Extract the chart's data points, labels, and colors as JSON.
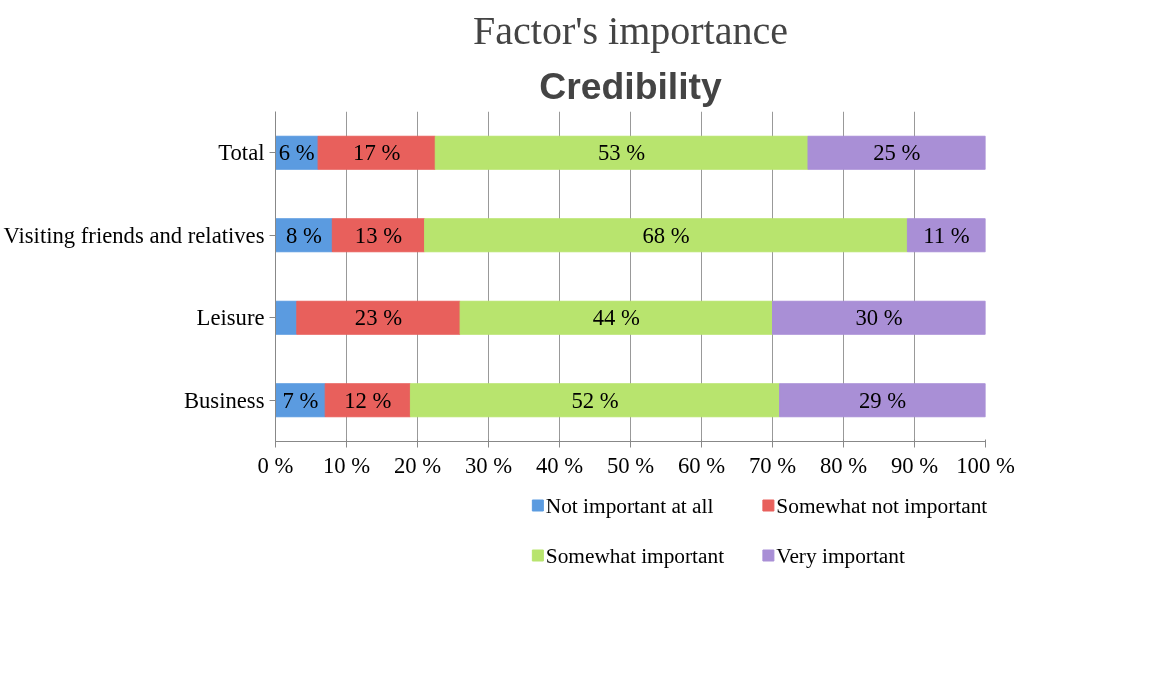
{
  "chart_data": {
    "type": "bar",
    "orientation": "horizontal",
    "stacked": true,
    "title": "Factor's importance",
    "subtitle": "Credibility",
    "categories": [
      "Total",
      "Visiting friends and relatives",
      "Leisure",
      "Business"
    ],
    "series": [
      {
        "name": "Not important at all",
        "color": "#5b9be0",
        "values": [
          6,
          8,
          3,
          7
        ],
        "value_labels": [
          "6 %",
          "8 %",
          null,
          "7 %"
        ]
      },
      {
        "name": "Somewhat not important",
        "color": "#e8605c",
        "values": [
          16.5,
          13,
          23,
          12
        ],
        "value_labels": [
          "17 %",
          "13 %",
          "23 %",
          "12 %"
        ]
      },
      {
        "name": "Somewhat important",
        "color": "#b8e46e",
        "values": [
          52.5,
          68,
          44,
          52
        ],
        "value_labels": [
          "53 %",
          "68 %",
          "44 %",
          "52 %"
        ]
      },
      {
        "name": "Very important",
        "color": "#a98fd6",
        "values": [
          25,
          11,
          30,
          29
        ],
        "value_labels": [
          "25 %",
          "11 %",
          "30 %",
          "29 %"
        ]
      }
    ],
    "xlim": [
      0,
      100
    ],
    "xticks": [
      {
        "value": 0,
        "label": "0 %"
      },
      {
        "value": 10,
        "label": "10 %"
      },
      {
        "value": 20,
        "label": "20 %"
      },
      {
        "value": 30,
        "label": "30 %"
      },
      {
        "value": 40,
        "label": "40 %"
      },
      {
        "value": 50,
        "label": "50 %"
      },
      {
        "value": 60,
        "label": "60 %"
      },
      {
        "value": 70,
        "label": "70 %"
      },
      {
        "value": 80,
        "label": "80 %"
      },
      {
        "value": 90,
        "label": "90 %"
      },
      {
        "value": 100,
        "label": "100 %"
      }
    ],
    "grid": "x",
    "legend": "bottom"
  }
}
